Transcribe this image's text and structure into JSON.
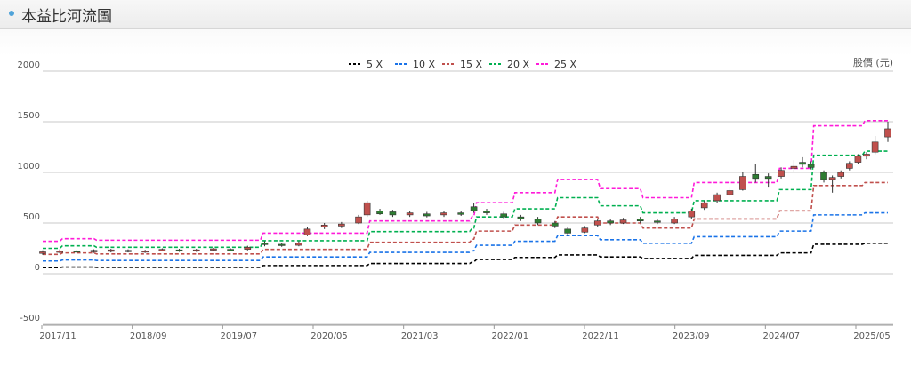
{
  "page": {
    "title": "本益比河流圖"
  },
  "chart_data": {
    "type": "line",
    "unit_label": "股價 (元)",
    "ylim": [
      -500,
      2000
    ],
    "y_ticks": [
      -500,
      0,
      500,
      1000,
      1500,
      2000
    ],
    "x_ticks": [
      "2017/11",
      "2018/09",
      "2019/07",
      "2020/05",
      "2021/03",
      "2022/01",
      "2022/11",
      "2023/09",
      "2024/07",
      "2025/05"
    ],
    "series": [
      {
        "name": "5 X",
        "color": "#000000",
        "steps": [
          [
            0,
            60
          ],
          [
            20,
            65
          ],
          [
            60,
            62
          ],
          [
            255,
            80
          ],
          [
            380,
            100
          ],
          [
            500,
            115
          ],
          [
            505,
            140
          ],
          [
            550,
            160
          ],
          [
            600,
            185
          ],
          [
            650,
            165
          ],
          [
            700,
            150
          ],
          [
            760,
            180
          ],
          [
            860,
            205
          ],
          [
            900,
            290
          ],
          [
            960,
            300
          ]
        ]
      },
      {
        "name": "10 X",
        "color": "#1a73e8",
        "steps": [
          [
            0,
            125
          ],
          [
            20,
            135
          ],
          [
            60,
            130
          ],
          [
            255,
            165
          ],
          [
            380,
            210
          ],
          [
            500,
            225
          ],
          [
            505,
            280
          ],
          [
            550,
            320
          ],
          [
            600,
            375
          ],
          [
            650,
            335
          ],
          [
            700,
            300
          ],
          [
            760,
            365
          ],
          [
            860,
            420
          ],
          [
            900,
            580
          ],
          [
            960,
            600
          ]
        ]
      },
      {
        "name": "15 X",
        "color": "#c0504d",
        "steps": [
          [
            0,
            190
          ],
          [
            20,
            205
          ],
          [
            60,
            195
          ],
          [
            255,
            240
          ],
          [
            380,
            310
          ],
          [
            500,
            340
          ],
          [
            505,
            420
          ],
          [
            550,
            480
          ],
          [
            600,
            560
          ],
          [
            650,
            500
          ],
          [
            700,
            450
          ],
          [
            760,
            540
          ],
          [
            860,
            620
          ],
          [
            900,
            870
          ],
          [
            960,
            900
          ]
        ]
      },
      {
        "name": "20 X",
        "color": "#00b050",
        "steps": [
          [
            0,
            250
          ],
          [
            20,
            275
          ],
          [
            60,
            260
          ],
          [
            255,
            325
          ],
          [
            380,
            415
          ],
          [
            500,
            450
          ],
          [
            505,
            560
          ],
          [
            550,
            640
          ],
          [
            600,
            750
          ],
          [
            650,
            670
          ],
          [
            700,
            600
          ],
          [
            760,
            720
          ],
          [
            860,
            830
          ],
          [
            900,
            1170
          ],
          [
            960,
            1210
          ]
        ]
      },
      {
        "name": "25 X",
        "color": "#ff1ad9",
        "steps": [
          [
            0,
            320
          ],
          [
            20,
            345
          ],
          [
            60,
            330
          ],
          [
            255,
            400
          ],
          [
            380,
            520
          ],
          [
            500,
            565
          ],
          [
            505,
            700
          ],
          [
            550,
            800
          ],
          [
            600,
            930
          ],
          [
            650,
            840
          ],
          [
            700,
            750
          ],
          [
            760,
            900
          ],
          [
            860,
            1040
          ],
          [
            900,
            1460
          ],
          [
            960,
            1510
          ]
        ]
      }
    ],
    "candles": [
      [
        0,
        200,
        215,
        185,
        230
      ],
      [
        20,
        210,
        225,
        200,
        240
      ],
      [
        40,
        225,
        215,
        205,
        235
      ],
      [
        60,
        215,
        230,
        205,
        240
      ],
      [
        80,
        220,
        235,
        210,
        245
      ],
      [
        100,
        230,
        220,
        210,
        240
      ],
      [
        120,
        215,
        225,
        205,
        235
      ],
      [
        140,
        230,
        240,
        220,
        250
      ],
      [
        160,
        235,
        225,
        215,
        245
      ],
      [
        180,
        225,
        235,
        215,
        245
      ],
      [
        200,
        235,
        245,
        225,
        255
      ],
      [
        220,
        240,
        230,
        220,
        250
      ],
      [
        240,
        240,
        260,
        230,
        275
      ],
      [
        260,
        300,
        290,
        270,
        320
      ],
      [
        280,
        290,
        280,
        265,
        305
      ],
      [
        300,
        280,
        300,
        270,
        320
      ],
      [
        310,
        380,
        440,
        370,
        460
      ],
      [
        330,
        460,
        480,
        440,
        500
      ],
      [
        350,
        470,
        490,
        450,
        510
      ],
      [
        370,
        500,
        560,
        490,
        580
      ],
      [
        380,
        580,
        700,
        560,
        720
      ],
      [
        395,
        620,
        590,
        580,
        640
      ],
      [
        410,
        610,
        580,
        560,
        630
      ],
      [
        430,
        580,
        600,
        560,
        620
      ],
      [
        450,
        590,
        570,
        555,
        610
      ],
      [
        470,
        580,
        600,
        560,
        620
      ],
      [
        490,
        600,
        585,
        570,
        615
      ],
      [
        505,
        660,
        620,
        600,
        700
      ],
      [
        520,
        620,
        600,
        580,
        640
      ],
      [
        540,
        590,
        560,
        540,
        610
      ],
      [
        560,
        560,
        540,
        520,
        580
      ],
      [
        580,
        540,
        500,
        480,
        560
      ],
      [
        600,
        500,
        470,
        450,
        520
      ],
      [
        615,
        440,
        400,
        370,
        460
      ],
      [
        635,
        410,
        450,
        400,
        470
      ],
      [
        650,
        480,
        520,
        460,
        540
      ],
      [
        665,
        520,
        500,
        480,
        540
      ],
      [
        680,
        500,
        530,
        490,
        550
      ],
      [
        700,
        540,
        520,
        500,
        560
      ],
      [
        720,
        520,
        510,
        490,
        540
      ],
      [
        740,
        500,
        540,
        490,
        560
      ],
      [
        760,
        560,
        620,
        540,
        640
      ],
      [
        775,
        650,
        700,
        630,
        720
      ],
      [
        790,
        720,
        780,
        700,
        800
      ],
      [
        805,
        780,
        820,
        760,
        850
      ],
      [
        820,
        830,
        960,
        820,
        1000
      ],
      [
        835,
        980,
        940,
        900,
        1080
      ],
      [
        850,
        960,
        940,
        850,
        990
      ],
      [
        865,
        960,
        1020,
        940,
        1050
      ],
      [
        880,
        1040,
        1060,
        1000,
        1120
      ],
      [
        890,
        1100,
        1080,
        1050,
        1150
      ],
      [
        900,
        1080,
        1050,
        1030,
        1110
      ],
      [
        915,
        1000,
        930,
        900,
        1020
      ],
      [
        925,
        930,
        950,
        800,
        970
      ],
      [
        935,
        960,
        1000,
        940,
        1020
      ],
      [
        945,
        1040,
        1090,
        1020,
        1110
      ],
      [
        955,
        1100,
        1160,
        1080,
        1180
      ],
      [
        965,
        1160,
        1180,
        1130,
        1200
      ],
      [
        975,
        1200,
        1300,
        1180,
        1360
      ],
      [
        990,
        1350,
        1430,
        1300,
        1500
      ]
    ]
  }
}
